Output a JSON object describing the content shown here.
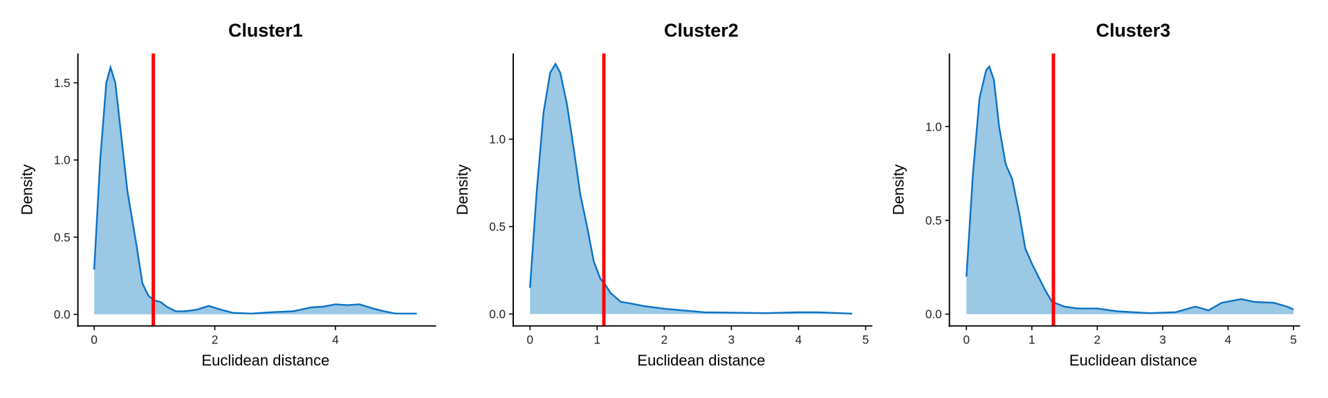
{
  "colors": {
    "fill": "#9ac8e5",
    "line": "#0d72c4",
    "threshold": "#ff0000"
  },
  "chart_data": [
    {
      "type": "area",
      "title": "Cluster1",
      "xlabel": "Euclidean distance",
      "ylabel": "Density",
      "xlim": [
        -0.27,
        5.67
      ],
      "ylim": [
        -0.075,
        1.69
      ],
      "xticks": [
        0,
        2,
        4
      ],
      "xtick_labels": [
        "0",
        "2",
        "4"
      ],
      "yticks": [
        0,
        0.5,
        1,
        1.5
      ],
      "ytick_labels": [
        "0.0",
        "0.5",
        "1.0",
        "1.5"
      ],
      "threshold": 0.98,
      "x": [
        0,
        0.1,
        0.2,
        0.27,
        0.35,
        0.45,
        0.55,
        0.7,
        0.8,
        0.9,
        1.0,
        1.1,
        1.2,
        1.35,
        1.5,
        1.7,
        1.9,
        2.1,
        2.3,
        2.6,
        3.0,
        3.3,
        3.6,
        3.8,
        4.0,
        4.2,
        4.4,
        4.6,
        4.8,
        5.0,
        5.35
      ],
      "y": [
        0.29,
        1.0,
        1.5,
        1.6,
        1.5,
        1.15,
        0.8,
        0.45,
        0.2,
        0.12,
        0.09,
        0.08,
        0.05,
        0.02,
        0.02,
        0.03,
        0.055,
        0.03,
        0.01,
        0.005,
        0.015,
        0.02,
        0.045,
        0.05,
        0.065,
        0.06,
        0.065,
        0.04,
        0.02,
        0.005,
        0.005
      ]
    },
    {
      "type": "area",
      "title": "Cluster2",
      "xlabel": "Euclidean distance",
      "ylabel": "Density",
      "xlim": [
        -0.25,
        5.1
      ],
      "ylim": [
        -0.068,
        1.49
      ],
      "xticks": [
        0,
        1,
        2,
        3,
        4,
        5
      ],
      "xtick_labels": [
        "0",
        "1",
        "2",
        "3",
        "4",
        "5"
      ],
      "yticks": [
        0,
        0.5,
        1
      ],
      "ytick_labels": [
        "0.0",
        "0.5",
        "1.0"
      ],
      "threshold": 1.1,
      "x": [
        0,
        0.1,
        0.2,
        0.3,
        0.38,
        0.45,
        0.55,
        0.65,
        0.75,
        0.85,
        0.95,
        1.05,
        1.1,
        1.2,
        1.35,
        1.5,
        1.7,
        2.0,
        2.3,
        2.6,
        3.0,
        3.5,
        4.0,
        4.3,
        4.8
      ],
      "y": [
        0.15,
        0.7,
        1.15,
        1.38,
        1.43,
        1.38,
        1.2,
        0.95,
        0.68,
        0.5,
        0.3,
        0.2,
        0.18,
        0.12,
        0.07,
        0.06,
        0.045,
        0.03,
        0.02,
        0.01,
        0.008,
        0.005,
        0.01,
        0.01,
        0.002
      ]
    },
    {
      "type": "area",
      "title": "Cluster3",
      "xlabel": "Euclidean distance",
      "ylabel": "Density",
      "xlim": [
        -0.26,
        5.1
      ],
      "ylim": [
        -0.063,
        1.39
      ],
      "xticks": [
        0,
        1,
        2,
        3,
        4,
        5
      ],
      "xtick_labels": [
        "0",
        "1",
        "2",
        "3",
        "4",
        "5"
      ],
      "yticks": [
        0,
        0.5,
        1
      ],
      "ytick_labels": [
        "0.0",
        "0.5",
        "1.0"
      ],
      "threshold": 1.33,
      "x": [
        0,
        0.1,
        0.2,
        0.3,
        0.35,
        0.42,
        0.5,
        0.6,
        0.7,
        0.8,
        0.9,
        1.0,
        1.1,
        1.2,
        1.3,
        1.35,
        1.5,
        1.7,
        2.0,
        2.3,
        2.8,
        3.2,
        3.5,
        3.7,
        3.9,
        4.2,
        4.4,
        4.7,
        4.9,
        5.0
      ],
      "y": [
        0.2,
        0.75,
        1.15,
        1.3,
        1.32,
        1.25,
        1.0,
        0.8,
        0.72,
        0.55,
        0.35,
        0.27,
        0.2,
        0.13,
        0.07,
        0.06,
        0.04,
        0.03,
        0.03,
        0.015,
        0.005,
        0.01,
        0.04,
        0.02,
        0.06,
        0.08,
        0.065,
        0.06,
        0.04,
        0.025
      ]
    }
  ]
}
